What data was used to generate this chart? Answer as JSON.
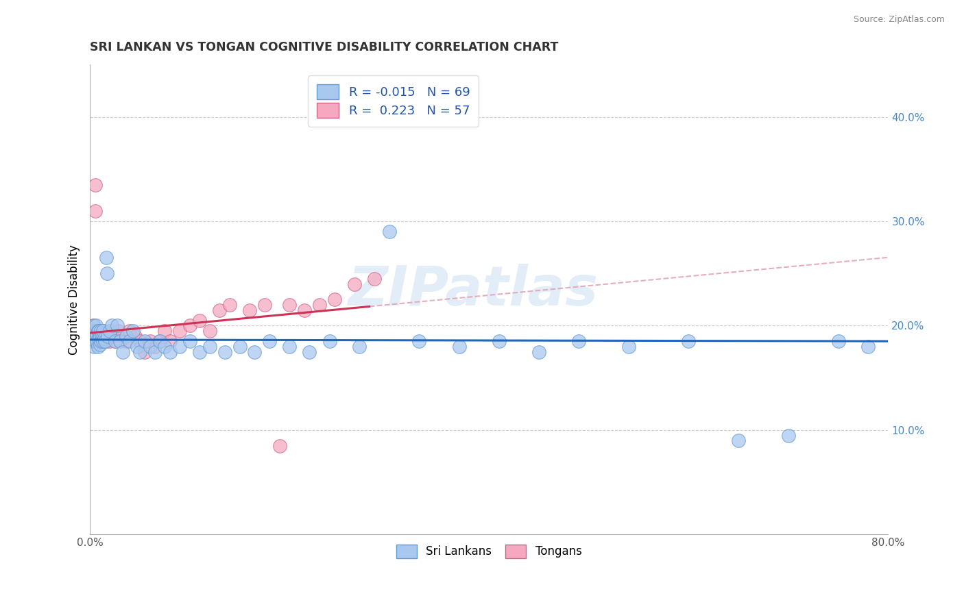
{
  "title": "SRI LANKAN VS TONGAN COGNITIVE DISABILITY CORRELATION CHART",
  "source": "Source: ZipAtlas.com",
  "watermark": "ZIPatlas",
  "ylabel": "Cognitive Disability",
  "xlim": [
    0.0,
    0.8
  ],
  "ylim": [
    0.0,
    0.45
  ],
  "xticks": [
    0.0,
    0.1,
    0.2,
    0.3,
    0.4,
    0.5,
    0.6,
    0.7,
    0.8
  ],
  "yticks": [
    0.1,
    0.2,
    0.3,
    0.4
  ],
  "r_sri": -0.015,
  "n_sri": 69,
  "r_ton": 0.223,
  "n_ton": 57,
  "sri_lankan_color": "#A8C8F0",
  "tongan_color": "#F5A8C0",
  "sri_lankan_edge": "#6699CC",
  "tongan_edge": "#CC6688",
  "trend_sri_color": "#2266BB",
  "trend_ton_color": "#CC3355",
  "trend_dashed_color": "#E0A0B0",
  "sri_lankans_x": [
    0.001,
    0.002,
    0.003,
    0.004,
    0.004,
    0.005,
    0.005,
    0.006,
    0.006,
    0.007,
    0.007,
    0.008,
    0.008,
    0.009,
    0.009,
    0.01,
    0.01,
    0.011,
    0.011,
    0.012,
    0.012,
    0.013,
    0.013,
    0.014,
    0.015,
    0.016,
    0.017,
    0.018,
    0.02,
    0.022,
    0.025,
    0.027,
    0.03,
    0.033,
    0.036,
    0.04,
    0.043,
    0.047,
    0.05,
    0.055,
    0.06,
    0.065,
    0.07,
    0.075,
    0.08,
    0.09,
    0.1,
    0.11,
    0.12,
    0.135,
    0.15,
    0.165,
    0.18,
    0.2,
    0.22,
    0.24,
    0.27,
    0.3,
    0.33,
    0.37,
    0.41,
    0.45,
    0.49,
    0.54,
    0.6,
    0.65,
    0.7,
    0.75,
    0.78
  ],
  "sri_lankans_y": [
    0.185,
    0.19,
    0.195,
    0.18,
    0.2,
    0.185,
    0.195,
    0.188,
    0.2,
    0.192,
    0.185,
    0.195,
    0.18,
    0.188,
    0.195,
    0.182,
    0.19,
    0.185,
    0.195,
    0.188,
    0.192,
    0.185,
    0.195,
    0.188,
    0.185,
    0.265,
    0.25,
    0.19,
    0.195,
    0.2,
    0.185,
    0.2,
    0.185,
    0.175,
    0.19,
    0.185,
    0.195,
    0.18,
    0.175,
    0.185,
    0.18,
    0.175,
    0.185,
    0.18,
    0.175,
    0.18,
    0.185,
    0.175,
    0.18,
    0.175,
    0.18,
    0.175,
    0.185,
    0.18,
    0.175,
    0.185,
    0.18,
    0.29,
    0.185,
    0.18,
    0.185,
    0.175,
    0.185,
    0.18,
    0.185,
    0.09,
    0.095,
    0.185,
    0.18
  ],
  "tongans_x": [
    0.001,
    0.002,
    0.003,
    0.003,
    0.004,
    0.004,
    0.005,
    0.005,
    0.006,
    0.006,
    0.007,
    0.007,
    0.008,
    0.008,
    0.009,
    0.009,
    0.01,
    0.01,
    0.011,
    0.011,
    0.012,
    0.012,
    0.013,
    0.014,
    0.015,
    0.016,
    0.018,
    0.02,
    0.022,
    0.025,
    0.028,
    0.032,
    0.036,
    0.04,
    0.045,
    0.05,
    0.055,
    0.06,
    0.065,
    0.07,
    0.075,
    0.08,
    0.09,
    0.1,
    0.11,
    0.12,
    0.13,
    0.14,
    0.16,
    0.175,
    0.19,
    0.2,
    0.215,
    0.23,
    0.245,
    0.265,
    0.285
  ],
  "tongans_y": [
    0.195,
    0.185,
    0.2,
    0.19,
    0.195,
    0.185,
    0.335,
    0.31,
    0.195,
    0.185,
    0.195,
    0.19,
    0.195,
    0.185,
    0.195,
    0.19,
    0.185,
    0.195,
    0.19,
    0.185,
    0.195,
    0.19,
    0.185,
    0.195,
    0.19,
    0.185,
    0.19,
    0.185,
    0.19,
    0.185,
    0.195,
    0.19,
    0.185,
    0.195,
    0.19,
    0.185,
    0.175,
    0.185,
    0.18,
    0.185,
    0.195,
    0.185,
    0.195,
    0.2,
    0.205,
    0.195,
    0.215,
    0.22,
    0.215,
    0.22,
    0.085,
    0.22,
    0.215,
    0.22,
    0.225,
    0.24,
    0.245
  ]
}
